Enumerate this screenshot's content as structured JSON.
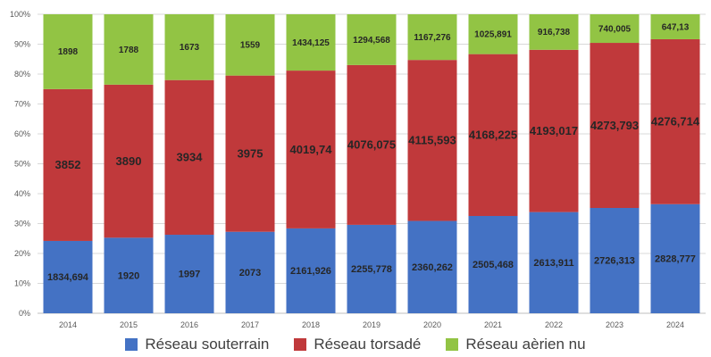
{
  "chart_data": {
    "type": "bar",
    "stacked": "percent",
    "categories": [
      "2014",
      "2015",
      "2016",
      "2017",
      "2018",
      "2019",
      "2020",
      "2021",
      "2022",
      "2023",
      "2024"
    ],
    "y_ticks": [
      "0%",
      "10%",
      "20%",
      "30%",
      "40%",
      "50%",
      "60%",
      "70%",
      "80%",
      "90%",
      "100%"
    ],
    "ylim": [
      0,
      100
    ],
    "grid": true,
    "legend_position": "bottom",
    "series": [
      {
        "name": "Réseau souterrain",
        "color": "#4472c4",
        "values": [
          1834.694,
          1920,
          1997,
          2073,
          2161.926,
          2255.778,
          2360.262,
          2505.468,
          2613.911,
          2726.313,
          2828.777
        ],
        "labels": [
          "1834,694",
          "1920",
          "1997",
          "2073",
          "2161,926",
          "2255,778",
          "2360,262",
          "2505,468",
          "2613,911",
          "2726,313",
          "2828,777"
        ]
      },
      {
        "name": "Réseau torsadé",
        "color": "#c0393b",
        "values": [
          3852,
          3890,
          3934,
          3975,
          4019.74,
          4076.075,
          4115.593,
          4168.225,
          4193.017,
          4273.793,
          4276.714
        ],
        "labels": [
          "3852",
          "3890",
          "3934",
          "3975",
          "4019,74",
          "4076,075",
          "4115,593",
          "4168,225",
          "4193,017",
          "4273,793",
          "4276,714"
        ]
      },
      {
        "name": "Réseau aèrien nu",
        "color": "#92c444",
        "values": [
          1898,
          1788,
          1673,
          1559,
          1434.125,
          1294.568,
          1167.276,
          1025.891,
          916.738,
          740.005,
          647.13
        ],
        "labels": [
          "1898",
          "1788",
          "1673",
          "1559",
          "1434,125",
          "1294,568",
          "1167,276",
          "1025,891",
          "916,738",
          "740,005",
          "647,13"
        ]
      }
    ]
  }
}
